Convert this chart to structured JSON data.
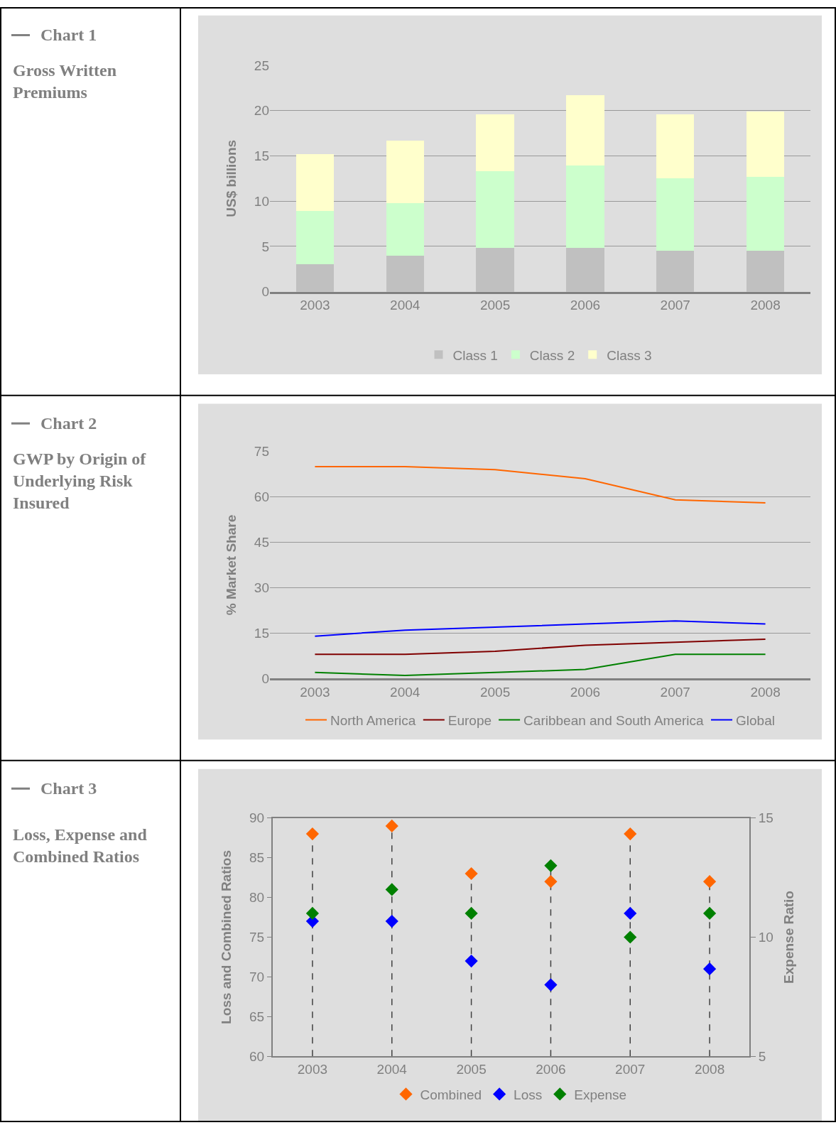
{
  "chart_data": [
    {
      "type": "other",
      "title": "Chart 1",
      "subtitle": "Gross Written Premiums"
    },
    {
      "type": "bar",
      "ylabel": "US$ billions",
      "stacked": true,
      "categories": [
        "2003",
        "2004",
        "2005",
        "2006",
        "2007",
        "2008"
      ],
      "series": [
        {
          "name": "Class 1",
          "color": "#c0c0c0",
          "values": [
            3.0,
            4.0,
            4.8,
            4.8,
            4.5,
            4.5
          ]
        },
        {
          "name": "Class 2",
          "color": "#ccffcc",
          "values": [
            5.9,
            5.8,
            8.5,
            9.1,
            8.0,
            8.2
          ]
        },
        {
          "name": "Class 3",
          "color": "#ffffcc",
          "values": [
            6.3,
            6.9,
            6.3,
            7.8,
            7.1,
            7.2
          ]
        }
      ],
      "ylim": [
        0,
        25
      ],
      "yticks": [
        0,
        5,
        10,
        15,
        20,
        25
      ],
      "grid": "y",
      "legend": "bottom"
    },
    {
      "type": "other",
      "title": "Chart 2",
      "subtitle": "GWP by Origin of Underlying Risk Insured"
    },
    {
      "type": "line",
      "ylabel": "% Market Share",
      "categories": [
        "2003",
        "2004",
        "2005",
        "2006",
        "2007",
        "2008"
      ],
      "series": [
        {
          "name": "North America",
          "color": "#ff6600",
          "values": [
            70,
            70,
            69,
            66,
            59,
            58
          ]
        },
        {
          "name": "Europe",
          "color": "#800000",
          "values": [
            8,
            8,
            9,
            11,
            12,
            13
          ]
        },
        {
          "name": "Caribbean and South America",
          "color": "#008000",
          "values": [
            2,
            1,
            2,
            3,
            8,
            8
          ]
        },
        {
          "name": "Global",
          "color": "#0000ff",
          "values": [
            14,
            16,
            17,
            18,
            19,
            18
          ]
        }
      ],
      "ylim": [
        0,
        75
      ],
      "yticks": [
        0,
        15,
        30,
        45,
        60,
        75
      ],
      "grid": "y",
      "legend": "bottom",
      "marker": "none",
      "line_style": "solid"
    },
    {
      "type": "other",
      "title": "Chart 3",
      "subtitle": "Loss, Expense and Combined Ratios"
    },
    {
      "type": "scatter",
      "ylabel": "Loss and Combined Ratios",
      "y2label": "Expense Ratio",
      "categories": [
        "2003",
        "2004",
        "2005",
        "2006",
        "2007",
        "2008"
      ],
      "series": [
        {
          "name": "Combined",
          "color": "#ff6600",
          "values": [
            88,
            89,
            83,
            82,
            88,
            82
          ]
        },
        {
          "name": "Loss",
          "color": "#0000ff",
          "values": [
            77,
            77,
            72,
            69,
            78,
            71
          ]
        },
        {
          "name": "Expense",
          "color": "#008000",
          "axis": "y2",
          "values": [
            11,
            12,
            11,
            13,
            10,
            11
          ]
        }
      ],
      "ylim": [
        60,
        90
      ],
      "yticks": [
        60,
        65,
        70,
        75,
        80,
        85,
        90
      ],
      "y2lim": [
        5,
        15
      ],
      "y2ticks": [
        5,
        10,
        15
      ],
      "ref_lines": [
        {
          "axis": "x",
          "value": "2003",
          "color": "#404040",
          "line_style": "dashed"
        },
        {
          "axis": "x",
          "value": "2004",
          "color": "#404040",
          "line_style": "dashed"
        },
        {
          "axis": "x",
          "value": "2005",
          "color": "#404040",
          "line_style": "dashed"
        },
        {
          "axis": "x",
          "value": "2006",
          "color": "#404040",
          "line_style": "dashed"
        },
        {
          "axis": "x",
          "value": "2007",
          "color": "#404040",
          "line_style": "dashed"
        },
        {
          "axis": "x",
          "value": "2008",
          "color": "#404040",
          "line_style": "dashed"
        }
      ],
      "grid": false,
      "legend": "bottom",
      "marker": "diamond"
    }
  ]
}
